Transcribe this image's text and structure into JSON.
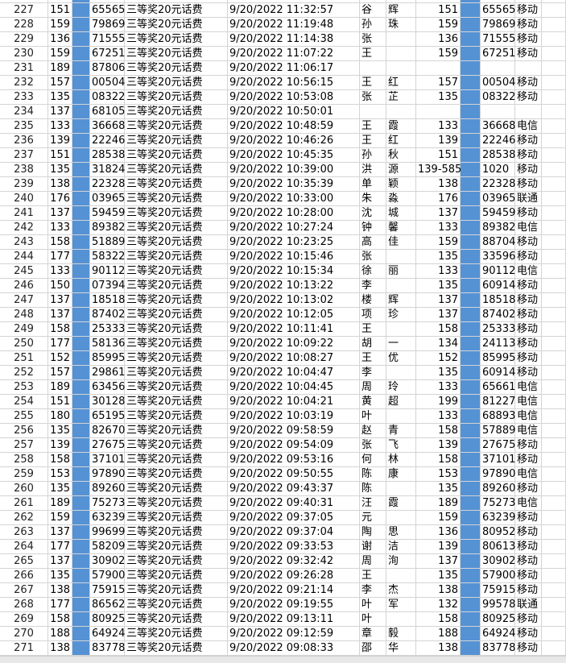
{
  "rows": [
    [
      227,
      151,
      "65565",
      "三等奖20元话费",
      "9/20/2022 11:32:57",
      "谷",
      "辉",
      151,
      "65565",
      "移动"
    ],
    [
      228,
      159,
      "79869",
      "三等奖20元话费",
      "9/20/2022 11:19:48",
      "孙",
      "珠",
      159,
      "79869",
      "移动"
    ],
    [
      229,
      136,
      "71555",
      "三等奖20元话费",
      "9/20/2022 11:14:38",
      "张",
      null,
      136,
      "71555",
      "移动"
    ],
    [
      230,
      159,
      "67251",
      "三等奖20元话费",
      "9/20/2022 11:07:22",
      "王",
      null,
      159,
      "67251",
      "移动"
    ],
    [
      231,
      189,
      "87806",
      "三等奖20元话费",
      "9/20/2022 11:06:17",
      null,
      null,
      null,
      null,
      null
    ],
    [
      232,
      157,
      "00504",
      "三等奖20元话费",
      "9/20/2022 10:56:15",
      "王",
      "红",
      157,
      "00504",
      "移动"
    ],
    [
      233,
      135,
      "08322",
      "三等奖20元话费",
      "9/20/2022 10:53:08",
      "张",
      "芷",
      135,
      "08322",
      "移动"
    ],
    [
      234,
      137,
      "68105",
      "三等奖20元话费",
      "9/20/2022 10:50:01",
      null,
      null,
      null,
      null,
      null
    ],
    [
      235,
      133,
      "36668",
      "三等奖20元话费",
      "9/20/2022 10:48:59",
      "王",
      "霞",
      133,
      "36668",
      "电信"
    ],
    [
      236,
      139,
      "22246",
      "三等奖20元话费",
      "9/20/2022 10:46:26",
      "王",
      "红",
      139,
      "22246",
      "移动"
    ],
    [
      237,
      151,
      "28538",
      "三等奖20元话费",
      "9/20/2022 10:45:35",
      "孙",
      "秋",
      151,
      "28538",
      "移动"
    ],
    [
      238,
      135,
      "31824",
      "三等奖20元话费",
      "9/20/2022 10:39:00",
      "洪",
      "源",
      "139-585",
      "1020",
      "移动"
    ],
    [
      239,
      138,
      "22328",
      "三等奖20元话费",
      "9/20/2022 10:35:39",
      "单",
      "颖",
      138,
      "22328",
      "移动"
    ],
    [
      240,
      176,
      "03965",
      "三等奖20元话费",
      "9/20/2022 10:33:00",
      "朱",
      "淼",
      176,
      "03965",
      "联通"
    ],
    [
      241,
      137,
      "59459",
      "三等奖20元话费",
      "9/20/2022 10:28:00",
      "沈",
      "城",
      137,
      "59459",
      "移动"
    ],
    [
      242,
      133,
      "89382",
      "三等奖20元话费",
      "9/20/2022 10:27:24",
      "钟",
      "馨",
      133,
      "89382",
      "电信"
    ],
    [
      243,
      158,
      "51889",
      "三等奖20元话费",
      "9/20/2022 10:23:25",
      "高",
      "佳",
      159,
      "88704",
      "移动"
    ],
    [
      244,
      177,
      "58322",
      "三等奖20元话费",
      "9/20/2022 10:15:46",
      "张",
      null,
      135,
      "33596",
      "移动"
    ],
    [
      245,
      133,
      "90112",
      "三等奖20元话费",
      "9/20/2022 10:15:34",
      "徐",
      "丽",
      133,
      "90112",
      "电信"
    ],
    [
      246,
      150,
      "07394",
      "三等奖20元话费",
      "9/20/2022 10:13:22",
      "李",
      null,
      135,
      "60914",
      "移动"
    ],
    [
      247,
      137,
      "18518",
      "三等奖20元话费",
      "9/20/2022 10:13:02",
      "楼",
      "辉",
      137,
      "18518",
      "移动"
    ],
    [
      248,
      137,
      "87402",
      "三等奖20元话费",
      "9/20/2022 10:12:05",
      "项",
      "珍",
      137,
      "87402",
      "移动"
    ],
    [
      249,
      158,
      "25333",
      "三等奖20元话费",
      "9/20/2022 10:11:41",
      "王",
      null,
      158,
      "25333",
      "移动"
    ],
    [
      250,
      177,
      "58136",
      "三等奖20元话费",
      "9/20/2022 10:09:22",
      "胡",
      "一",
      134,
      "24113",
      "移动"
    ],
    [
      251,
      152,
      "85995",
      "三等奖20元话费",
      "9/20/2022 10:08:27",
      "王",
      "优",
      152,
      "85995",
      "移动"
    ],
    [
      252,
      157,
      "29861",
      "三等奖20元话费",
      "9/20/2022 10:04:47",
      "李",
      null,
      135,
      "60914",
      "移动"
    ],
    [
      253,
      189,
      "63456",
      "三等奖20元话费",
      "9/20/2022 10:04:45",
      "周",
      "玲",
      133,
      "65661",
      "电信"
    ],
    [
      254,
      151,
      "30128",
      "三等奖20元话费",
      "9/20/2022 10:04:21",
      "黄",
      "超",
      199,
      "81227",
      "电信"
    ],
    [
      255,
      180,
      "65195",
      "三等奖20元话费",
      "9/20/2022 10:03:19",
      "叶",
      null,
      133,
      "68893",
      "电信"
    ],
    [
      256,
      135,
      "82670",
      "三等奖20元话费",
      "9/20/2022 09:58:59",
      "赵",
      "青",
      158,
      "57889",
      "电信"
    ],
    [
      257,
      139,
      "27675",
      "三等奖20元话费",
      "9/20/2022 09:54:09",
      "张",
      "飞",
      139,
      "27675",
      "移动"
    ],
    [
      258,
      158,
      "37101",
      "三等奖20元话费",
      "9/20/2022 09:53:16",
      "何",
      "林",
      158,
      "37101",
      "移动"
    ],
    [
      259,
      153,
      "97890",
      "三等奖20元话费",
      "9/20/2022 09:50:55",
      "陈",
      "康",
      153,
      "97890",
      "电信"
    ],
    [
      260,
      135,
      "89260",
      "三等奖20元话费",
      "9/20/2022 09:43:37",
      "陈",
      null,
      135,
      "89260",
      "移动"
    ],
    [
      261,
      189,
      "75273",
      "三等奖20元话费",
      "9/20/2022 09:40:31",
      "汪",
      "霞",
      189,
      "75273",
      "电信"
    ],
    [
      262,
      159,
      "63239",
      "三等奖20元话费",
      "9/20/2022 09:37:05",
      "元",
      null,
      159,
      "63239",
      "移动"
    ],
    [
      263,
      137,
      "99699",
      "三等奖20元话费",
      "9/20/2022 09:37:04",
      "陶",
      "思",
      136,
      "80952",
      "移动"
    ],
    [
      264,
      177,
      "58209",
      "三等奖20元话费",
      "9/20/2022 09:33:53",
      "谢",
      "洁",
      139,
      "80613",
      "移动"
    ],
    [
      265,
      137,
      "30902",
      "三等奖20元话费",
      "9/20/2022 09:32:42",
      "周",
      "洵",
      137,
      "30902",
      "移动"
    ],
    [
      266,
      135,
      "57900",
      "三等奖20元话费",
      "9/20/2022 09:26:28",
      "王",
      null,
      135,
      "57900",
      "移动"
    ],
    [
      267,
      138,
      "75915",
      "三等奖20元话费",
      "9/20/2022 09:21:14",
      "李",
      "杰",
      138,
      "75915",
      "移动"
    ],
    [
      268,
      177,
      "86562",
      "三等奖20元话费",
      "9/20/2022 09:19:55",
      "叶",
      "军",
      132,
      "99578",
      "联通"
    ],
    [
      269,
      158,
      "80925",
      "三等奖20元话费",
      "9/20/2022 09:13:11",
      "叶",
      null,
      158,
      "80925",
      "移动"
    ],
    [
      270,
      188,
      "64924",
      "三等奖20元话费",
      "9/20/2022 09:12:59",
      "章",
      "毅",
      188,
      "64924",
      "移动"
    ],
    [
      271,
      138,
      "83778",
      "三等奖20元话费",
      "9/20/2022 09:08:33",
      "邵",
      "华",
      138,
      "83778",
      "移动"
    ]
  ]
}
